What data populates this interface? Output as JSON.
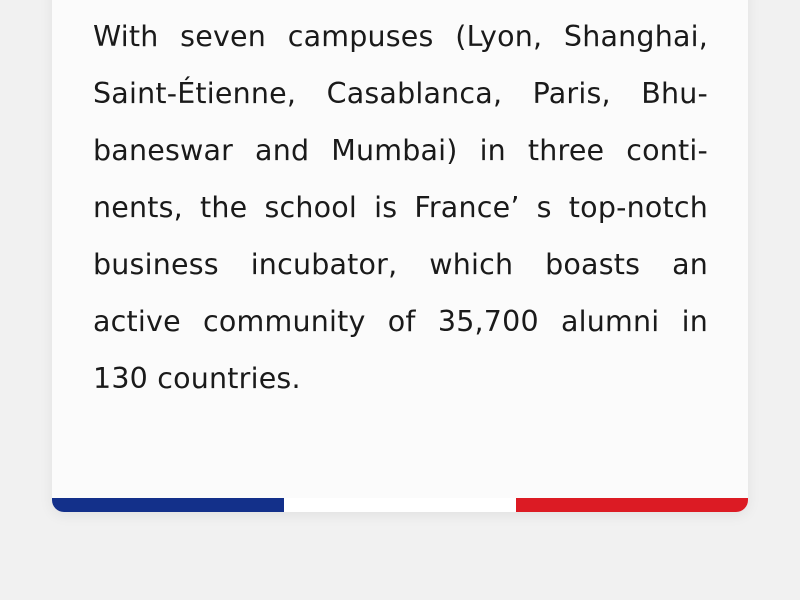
{
  "card": {
    "lines": [
      "With seven campuses (Lyon, Shanghai,",
      "Saint-Étienne, Casablanca, Paris, Bhu-",
      "baneswar and Mumbai) in three conti-",
      "nents, the school is France’ s top-notch",
      "business incubator, which boasts an",
      "active community of 35,700 alumni in",
      "130 countries."
    ]
  },
  "flag": {
    "blue": "#13308a",
    "white": "#ffffff",
    "red": "#dc1b24"
  }
}
